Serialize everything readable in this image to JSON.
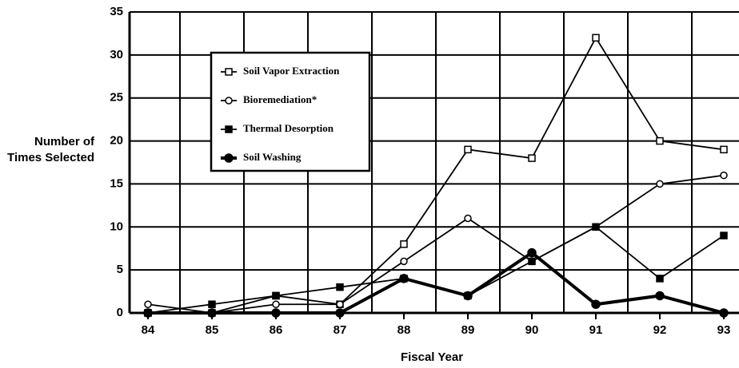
{
  "chart_data": {
    "type": "line",
    "x_label": "Fiscal Year",
    "y_label": "Number of Times Selected",
    "categories": [
      "84",
      "85",
      "86",
      "87",
      "88",
      "89",
      "90",
      "91",
      "92",
      "93"
    ],
    "series": [
      {
        "name": "Soil Vapor Extraction",
        "color": "#000000",
        "marker": "open-square",
        "values": [
          0,
          0,
          2,
          1,
          8,
          19,
          18,
          32,
          20,
          19
        ]
      },
      {
        "name": "Bioremediation*",
        "color": "#000000",
        "marker": "open-circle",
        "values": [
          1,
          0,
          1,
          1,
          6,
          11,
          6,
          10,
          15,
          16
        ]
      },
      {
        "name": "Thermal Desorption",
        "color": "#000000",
        "marker": "filled-square",
        "values": [
          0,
          1,
          2,
          3,
          4,
          2,
          6,
          10,
          4,
          9
        ]
      },
      {
        "name": "Soil Washing",
        "color": "#000000",
        "marker": "filled-circle",
        "values": [
          0,
          0,
          0,
          0,
          4,
          2,
          7,
          1,
          2,
          0
        ]
      }
    ],
    "ylim": [
      0,
      35
    ],
    "yticks": [
      0,
      5,
      10,
      15,
      20,
      25,
      30,
      35
    ],
    "grid": true,
    "legend": "upper left"
  }
}
